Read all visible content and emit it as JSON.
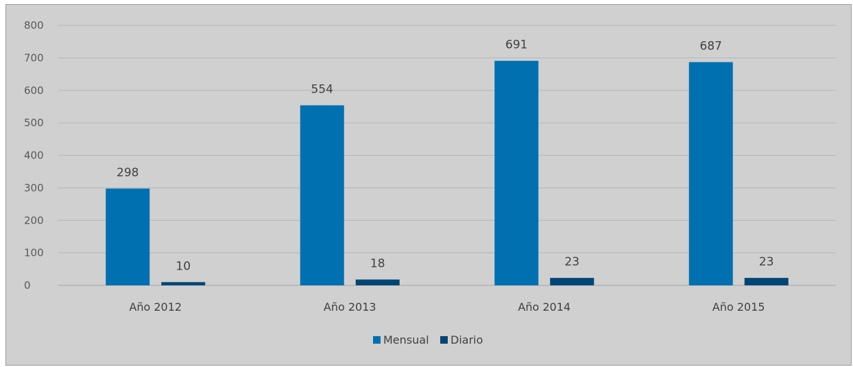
{
  "chart_data": {
    "type": "bar",
    "title": "",
    "xlabel": "",
    "ylabel": "",
    "categories": [
      "Año 2012",
      "Año 2013",
      "Año 2014",
      "Año 2015"
    ],
    "series": [
      {
        "name": "Mensual",
        "values": [
          298,
          554,
          691,
          687
        ],
        "color": "#0070b0"
      },
      {
        "name": "Diario",
        "values": [
          10,
          18,
          23,
          23
        ],
        "color": "#004675"
      }
    ],
    "ylim": [
      0,
      800
    ],
    "yticks": [
      0,
      100,
      200,
      300,
      400,
      500,
      600,
      700,
      800
    ],
    "grid": true,
    "legend_position": "bottom",
    "data_labels": true
  }
}
